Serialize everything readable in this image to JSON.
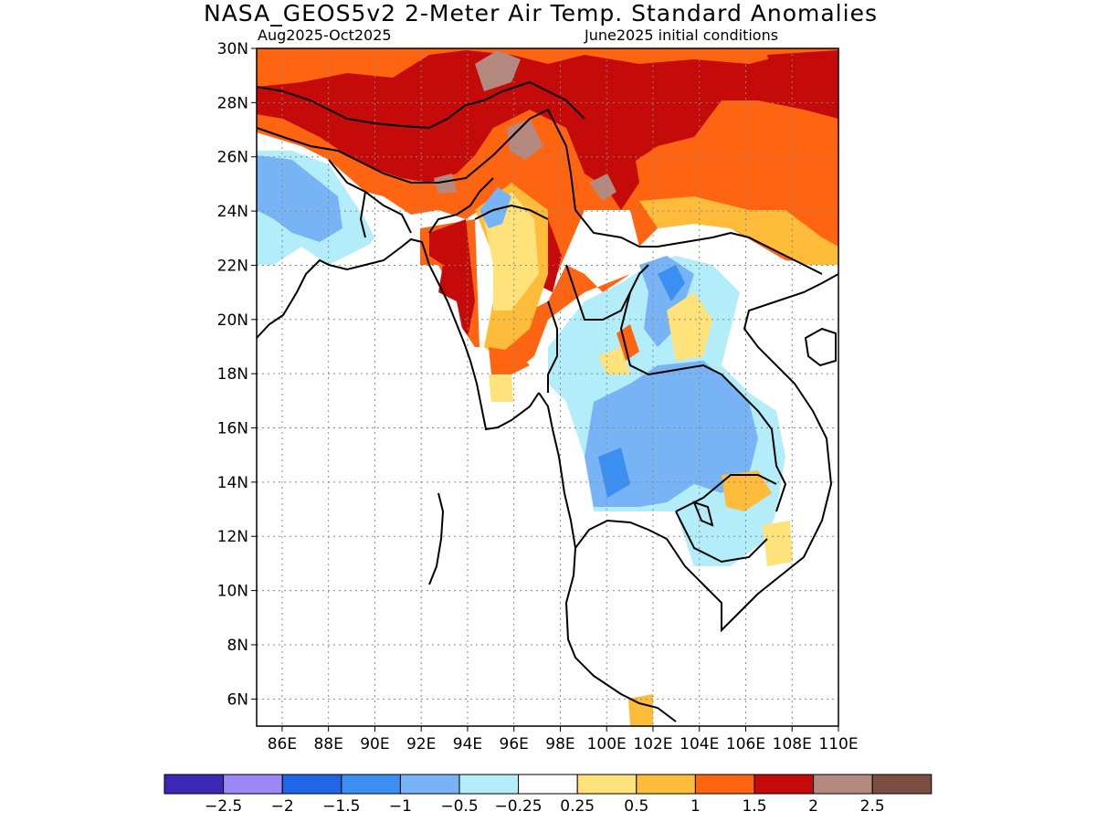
{
  "title": "NASA_GEOS5v2 2-Meter Air Temp. Standard Anomalies",
  "subtitle_left": "Aug2025-Oct2025",
  "subtitle_right": "June2025 initial conditions",
  "map": {
    "lon_range": [
      84.9,
      110
    ],
    "lat_range": [
      5,
      30
    ],
    "lat_ticks": [
      "30N",
      "28N",
      "26N",
      "24N",
      "22N",
      "20N",
      "18N",
      "16N",
      "14N",
      "12N",
      "10N",
      "8N",
      "6N"
    ],
    "lon_ticks": [
      "86E",
      "88E",
      "90E",
      "92E",
      "94E",
      "96E",
      "98E",
      "100E",
      "102E",
      "104E",
      "106E",
      "108E",
      "110E"
    ],
    "grid": "dotted"
  },
  "colorbar": {
    "colors": [
      "#3c26b4",
      "#9b87f5",
      "#1f66e8",
      "#3b8ff0",
      "#78b4f5",
      "#b3edf9",
      "#ffffff",
      "#ffe27a",
      "#ffbb3a",
      "#ff6410",
      "#c50a0a",
      "#b48a80",
      "#7a4f42"
    ],
    "labels": [
      "-2.5",
      "-2",
      "-1.5",
      "-1",
      "-0.5",
      "-0.25",
      "0.25",
      "0.5",
      "1",
      "1.5",
      "2",
      "2.5"
    ]
  },
  "colors": {
    "ocean": "#ffffff",
    "coast": "#000000"
  }
}
